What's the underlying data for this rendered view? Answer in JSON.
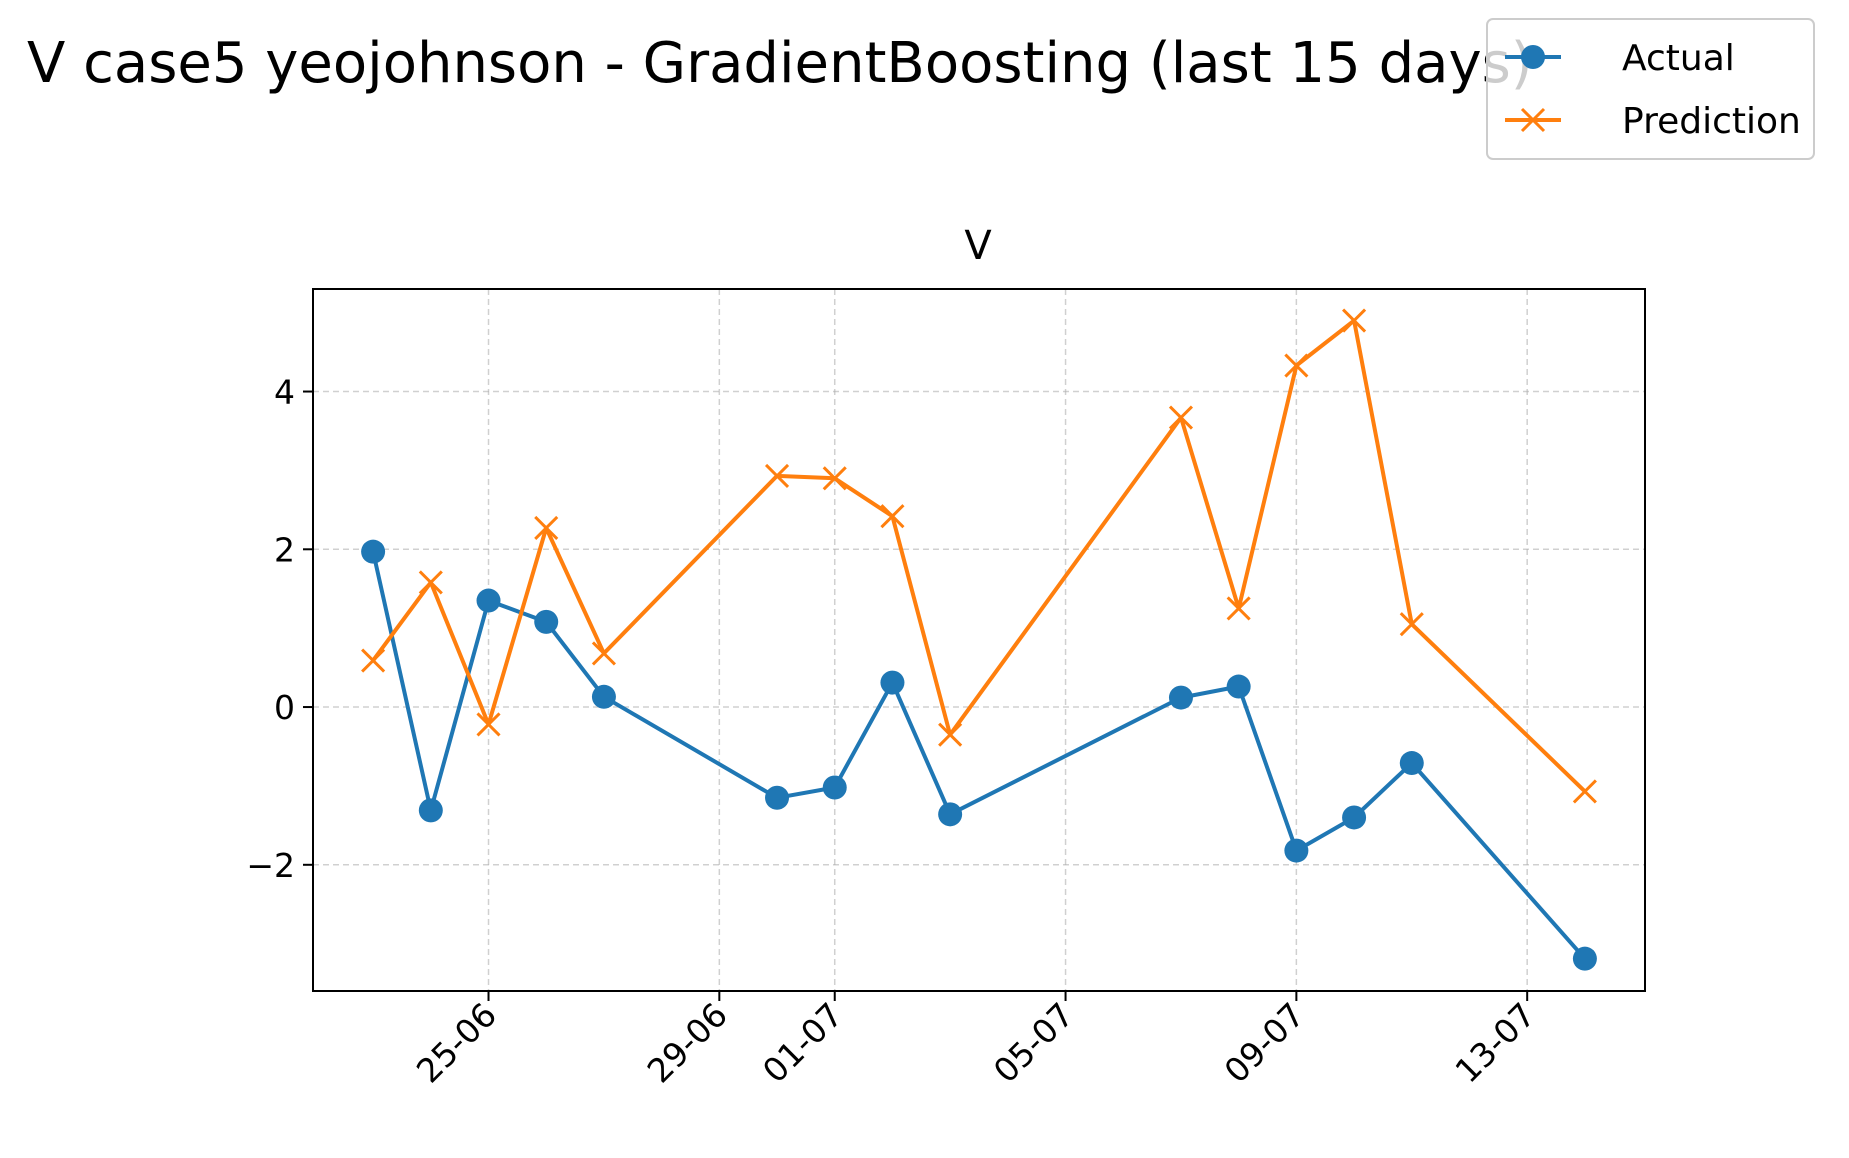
{
  "chart_data": {
    "type": "line",
    "title": "V case5 yeojohnson - GradientBoosting (last 15 days)",
    "subplot_title": "V",
    "xlabel": "",
    "ylabel": "",
    "x_tick_labels": [
      "25-06",
      "29-06",
      "01-07",
      "05-07",
      "09-07",
      "13-07"
    ],
    "y_tick_labels": [
      "−2",
      "0",
      "2",
      "4"
    ],
    "y_ticks": [
      -2,
      0,
      2,
      4
    ],
    "ylim": [
      -3.6,
      5.3
    ],
    "xlim": [
      "2025-06-21T23:00",
      "2025-07-15T01:00"
    ],
    "grid": true,
    "legend_position": "top-right",
    "x": [
      "2025-06-23",
      "2025-06-24",
      "2025-06-25",
      "2025-06-26",
      "2025-06-27",
      "2025-06-30",
      "2025-07-01",
      "2025-07-02",
      "2025-07-03",
      "2025-07-07",
      "2025-07-08",
      "2025-07-09",
      "2025-07-10",
      "2025-07-11",
      "2025-07-14"
    ],
    "series": [
      {
        "name": "Actual",
        "color": "#1f77b4",
        "marker": "circle",
        "values": [
          1.97,
          -1.31,
          1.35,
          1.08,
          0.13,
          -1.15,
          -1.02,
          0.31,
          -1.36,
          0.12,
          0.26,
          -1.82,
          -1.4,
          -0.71,
          -3.19
        ]
      },
      {
        "name": "Prediction",
        "color": "#ff7f0e",
        "marker": "x",
        "values": [
          0.59,
          1.58,
          -0.22,
          2.27,
          0.68,
          2.93,
          2.9,
          2.42,
          -0.35,
          3.67,
          1.25,
          4.33,
          4.9,
          1.05,
          -1.07
        ]
      }
    ]
  }
}
